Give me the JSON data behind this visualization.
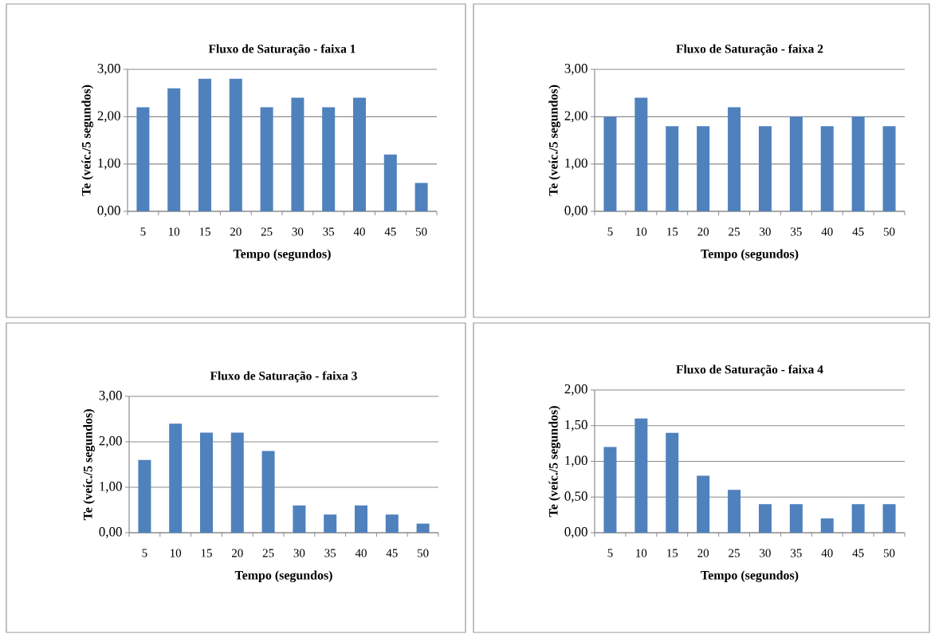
{
  "chart_data": [
    {
      "type": "bar",
      "title": "Fluxo de Saturação - faixa 1",
      "xlabel": "Tempo (segundos)",
      "ylabel": "Te (veíc./5 segundos)",
      "categories": [
        "5",
        "10",
        "15",
        "20",
        "25",
        "30",
        "35",
        "40",
        "45",
        "50"
      ],
      "values": [
        2.2,
        2.6,
        2.8,
        2.8,
        2.2,
        2.4,
        2.2,
        2.4,
        1.2,
        0.6
      ],
      "color": "#4f81bd",
      "ylim": [
        0,
        3
      ],
      "yticks": [
        {
          "value": 0,
          "label": "0,00"
        },
        {
          "value": 1,
          "label": "1,00"
        },
        {
          "value": 2,
          "label": "2,00"
        },
        {
          "value": 3,
          "label": "3,00"
        }
      ],
      "grid": "y"
    },
    {
      "type": "bar",
      "title": "Fluxo de Saturação - faixa 2",
      "xlabel": "Tempo (segundos)",
      "ylabel": "Te (veíc./5 segundos)",
      "categories": [
        "5",
        "10",
        "15",
        "20",
        "25",
        "30",
        "35",
        "40",
        "45",
        "50"
      ],
      "values": [
        2.0,
        2.4,
        1.8,
        1.8,
        2.2,
        1.8,
        2.0,
        1.8,
        2.0,
        1.8
      ],
      "color": "#4f81bd",
      "ylim": [
        0,
        3
      ],
      "yticks": [
        {
          "value": 0,
          "label": "0,00"
        },
        {
          "value": 1,
          "label": "1,00"
        },
        {
          "value": 2,
          "label": "2,00"
        },
        {
          "value": 3,
          "label": "3,00"
        }
      ],
      "grid": "y"
    },
    {
      "type": "bar",
      "title": "Fluxo de Saturação - faixa 3",
      "xlabel": "Tempo (segundos)",
      "ylabel": "Te (veíc./5 segundos)",
      "categories": [
        "5",
        "10",
        "15",
        "20",
        "25",
        "30",
        "35",
        "40",
        "45",
        "50"
      ],
      "values": [
        1.6,
        2.4,
        2.2,
        2.2,
        1.8,
        0.6,
        0.4,
        0.6,
        0.4,
        0.2
      ],
      "color": "#4f81bd",
      "ylim": [
        0,
        3
      ],
      "yticks": [
        {
          "value": 0,
          "label": "0,00"
        },
        {
          "value": 1,
          "label": "1,00"
        },
        {
          "value": 2,
          "label": "2,00"
        },
        {
          "value": 3,
          "label": "3,00"
        }
      ],
      "grid": "y"
    },
    {
      "type": "bar",
      "title": "Fluxo de Saturação - faixa 4",
      "xlabel": "Tempo (segundos)",
      "ylabel": "Te (veíc./5 segundos)",
      "categories": [
        "5",
        "10",
        "15",
        "20",
        "25",
        "30",
        "35",
        "40",
        "45",
        "50"
      ],
      "values": [
        1.2,
        1.6,
        1.4,
        0.8,
        0.6,
        0.4,
        0.4,
        0.2,
        0.4,
        0.4
      ],
      "color": "#4f81bd",
      "ylim": [
        0,
        2
      ],
      "yticks": [
        {
          "value": 0,
          "label": "0,00"
        },
        {
          "value": 0.5,
          "label": "0,50"
        },
        {
          "value": 1,
          "label": "1,00"
        },
        {
          "value": 1.5,
          "label": "1,50"
        },
        {
          "value": 2,
          "label": "2,00"
        }
      ],
      "grid": "y"
    }
  ]
}
